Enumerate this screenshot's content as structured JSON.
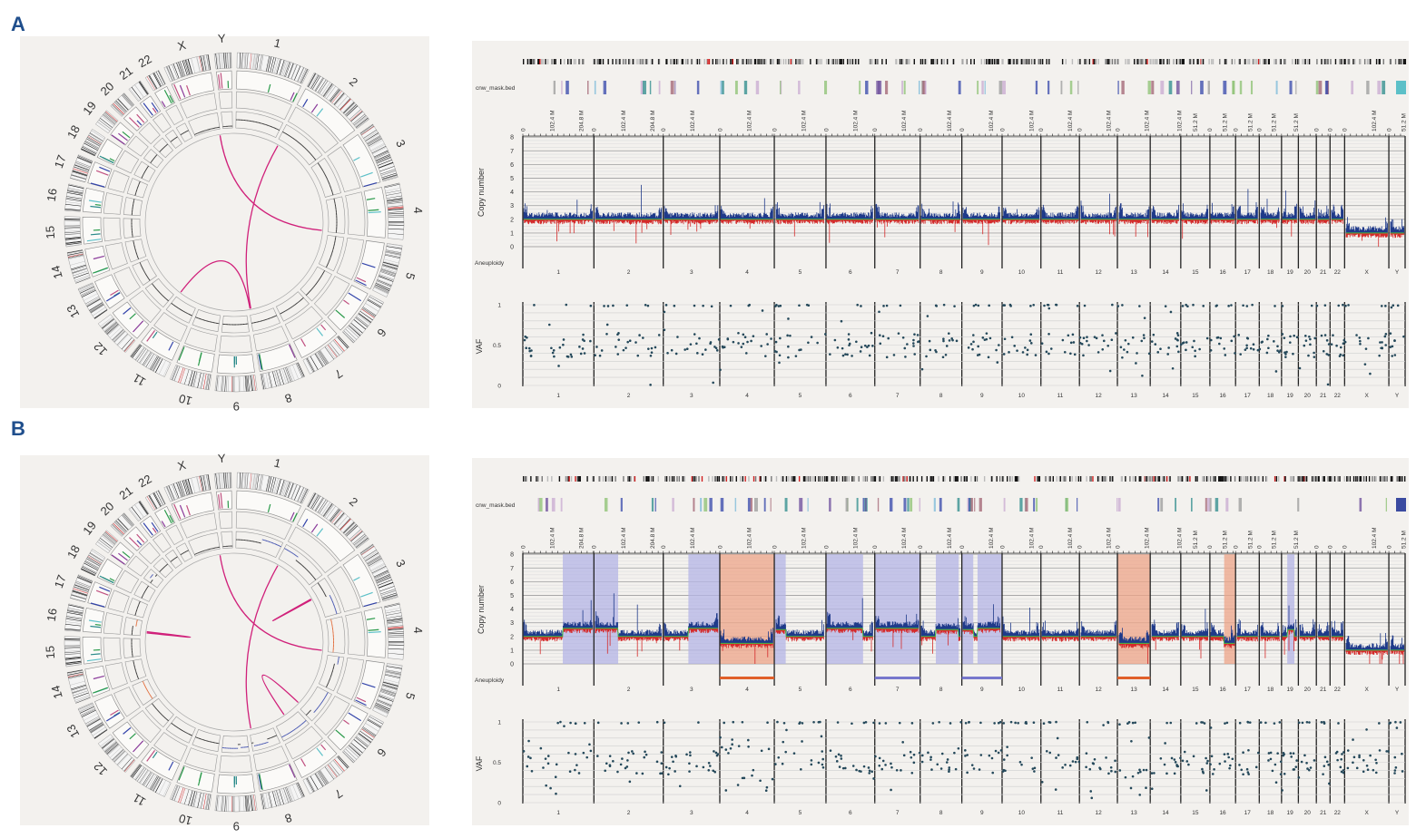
{
  "panels": [
    {
      "label": "A"
    },
    {
      "label": "B"
    }
  ],
  "labels": {
    "cnw_track": "cnw_mask.bed",
    "copy_number": "Copy number",
    "aneuploidy": "Aneuploidy",
    "vaf": "VAF"
  },
  "colors": {
    "panel_letter": "#1f4e8c",
    "cn_above": "#1f3a8a",
    "cn_below": "#d42a2a",
    "segment": "#44bb44",
    "gain_shade": "#b4b4e6",
    "loss_shade": "#eea488",
    "gain_bar": "#7777cc",
    "loss_bar": "#e0602a",
    "vaf_point": "#24485a",
    "sv_link": "#d0207a"
  },
  "chart_data": {
    "type": "composite-genome",
    "chromosomes": [
      "1",
      "2",
      "3",
      "4",
      "5",
      "6",
      "7",
      "8",
      "9",
      "10",
      "11",
      "12",
      "13",
      "14",
      "15",
      "16",
      "17",
      "18",
      "19",
      "20",
      "21",
      "22",
      "X",
      "Y"
    ],
    "lengths_mb": [
      249,
      243,
      198,
      191,
      181,
      171,
      159,
      146,
      141,
      136,
      135,
      133,
      115,
      107,
      102,
      90,
      83,
      78,
      59,
      63,
      48,
      51,
      155,
      57
    ],
    "tick_labels": [
      {
        "mb": 0,
        "label": "0"
      },
      {
        "mb": 51.2,
        "label": "51.2 M"
      },
      {
        "mb": 102.4,
        "label": "102.4 M"
      },
      {
        "mb": 204.8,
        "label": "204.8 M"
      }
    ],
    "cn_axis": {
      "title": "Copy number",
      "ticks": [
        "0",
        "1",
        "2",
        "3",
        "4",
        "5",
        "6",
        "7",
        "8"
      ],
      "range": [
        0,
        8
      ]
    },
    "vaf_axis": {
      "title": "VAF",
      "ticks": [
        "0",
        "0.5",
        "1"
      ],
      "range": [
        0,
        1
      ]
    },
    "panels": [
      {
        "label": "A",
        "baseline_cn": {
          "autosome": 2,
          "sex": 1
        },
        "cn_segments": [],
        "aneuploidy": [],
        "sv_links": [
          {
            "from": [
              "X",
              150
            ],
            "to": [
              "4",
              185
            ]
          },
          {
            "from": [
              "2",
              15
            ],
            "to": [
              "8",
              135
            ]
          },
          {
            "from": [
              "11",
              130
            ],
            "to": [
              "8",
              140
            ]
          }
        ]
      },
      {
        "label": "B",
        "baseline_cn": {
          "autosome": 2,
          "sex": 1
        },
        "cn_segments": [
          {
            "chr": "1",
            "start": 140,
            "end": 249,
            "cn": 2.6,
            "type": "gain"
          },
          {
            "chr": "2",
            "start": 0,
            "end": 85,
            "cn": 2.6,
            "type": "gain"
          },
          {
            "chr": "3",
            "start": 88,
            "end": 198,
            "cn": 2.6,
            "type": "gain"
          },
          {
            "chr": "4",
            "start": 0,
            "end": 191,
            "cn": 1.5,
            "type": "loss"
          },
          {
            "chr": "5",
            "start": 0,
            "end": 40,
            "cn": 2.5,
            "type": "gain"
          },
          {
            "chr": "6",
            "start": 0,
            "end": 130,
            "cn": 2.6,
            "type": "gain"
          },
          {
            "chr": "7",
            "start": 0,
            "end": 159,
            "cn": 2.6,
            "type": "gain"
          },
          {
            "chr": "8",
            "start": 55,
            "end": 135,
            "cn": 2.5,
            "type": "gain"
          },
          {
            "chr": "9",
            "start": 0,
            "end": 40,
            "cn": 2.5,
            "type": "gain"
          },
          {
            "chr": "9",
            "start": 55,
            "end": 141,
            "cn": 2.6,
            "type": "gain"
          },
          {
            "chr": "13",
            "start": 0,
            "end": 115,
            "cn": 1.5,
            "type": "loss"
          },
          {
            "chr": "16",
            "start": 50,
            "end": 90,
            "cn": 1.5,
            "type": "loss"
          },
          {
            "chr": "19",
            "start": 20,
            "end": 45,
            "cn": 2.5,
            "type": "gain"
          }
        ],
        "aneuploidy": [
          {
            "chr": "4",
            "type": "loss"
          },
          {
            "chr": "7",
            "type": "gain"
          },
          {
            "chr": "9",
            "type": "gain"
          },
          {
            "chr": "13",
            "type": "loss"
          }
        ],
        "sv_links": [
          {
            "from": [
              "X",
              150
            ],
            "to": [
              "4",
              185
            ]
          },
          {
            "from": [
              "2",
              15
            ],
            "to": [
              "8",
              135
            ]
          },
          {
            "from": [
              "6",
              150
            ],
            "to": [
              "7",
              80
            ]
          },
          {
            "from": [
              "3",
              60
            ],
            "to": [
              "3",
              66
            ]
          },
          {
            "from": [
              "16",
              20
            ],
            "to": [
              "16",
              28
            ]
          }
        ]
      }
    ]
  }
}
